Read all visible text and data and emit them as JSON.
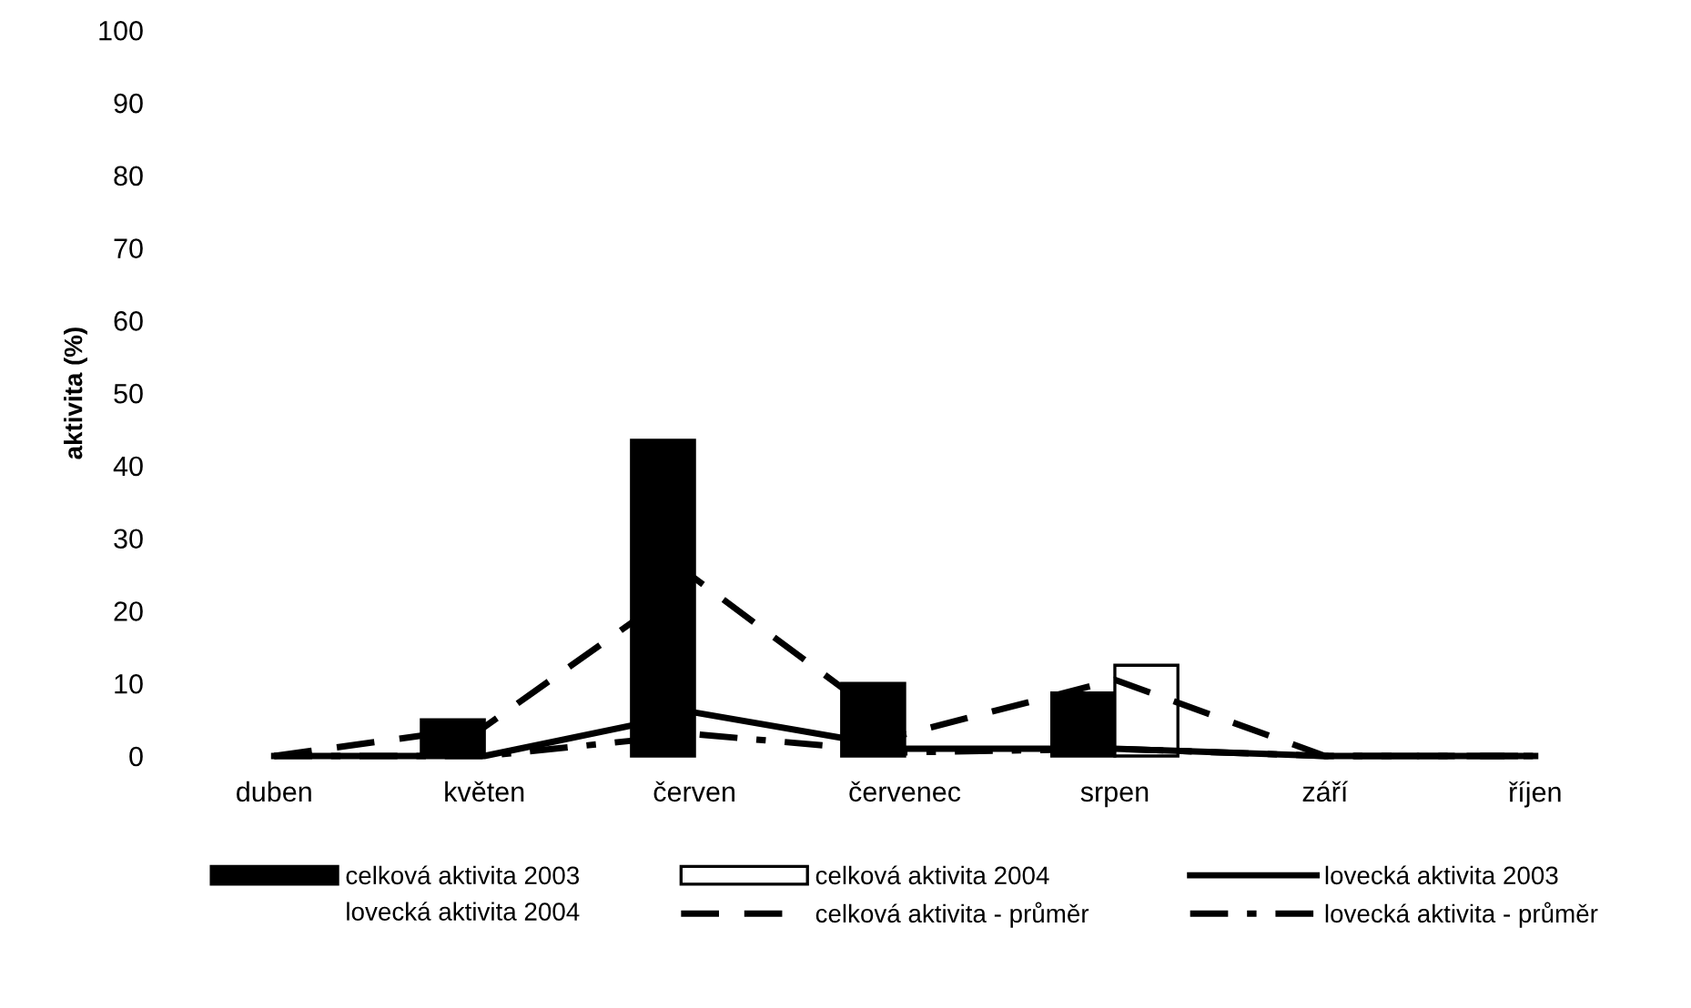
{
  "chart_data": {
    "type": "bar",
    "ylabel": "aktivita (%)",
    "categories": [
      "duben",
      "květen",
      "červen",
      "červenec",
      "srpen",
      "září",
      "říjen"
    ],
    "series": [
      {
        "name": "celková aktivita 2003",
        "color": "#000000",
        "values": [
          null,
          5,
          43.5,
          10,
          8.7,
          null,
          null
        ]
      },
      {
        "name": "celková aktivita 2004",
        "color": "#ffffff",
        "values": [
          null,
          null,
          null,
          null,
          12.5,
          null,
          null
        ]
      },
      {
        "name": "lovecká aktivita 2003",
        "type": "line",
        "line_style": "solid",
        "color": "#000000",
        "values": [
          0,
          0,
          6,
          1,
          1,
          0,
          0
        ]
      },
      {
        "name": "lovecká aktivita 2004",
        "type": "line",
        "values": [
          null,
          null,
          null,
          null,
          null,
          null,
          null
        ]
      },
      {
        "name": "celková aktivita - průměr",
        "type": "line",
        "line_style": "dashed",
        "color": "#000000",
        "values": [
          0,
          4,
          24.5,
          3,
          10.5,
          0,
          0
        ]
      },
      {
        "name": "lovecká aktivita - průměr",
        "type": "line",
        "line_style": "dashdot",
        "color": "#000000",
        "values": [
          0,
          0,
          3,
          0.5,
          1,
          0,
          0
        ]
      }
    ],
    "ylim": [
      0,
      100
    ],
    "yticks": [
      0,
      10,
      20,
      30,
      40,
      50,
      60,
      70,
      80,
      90,
      100
    ],
    "grid": false,
    "legend": "bottom"
  }
}
